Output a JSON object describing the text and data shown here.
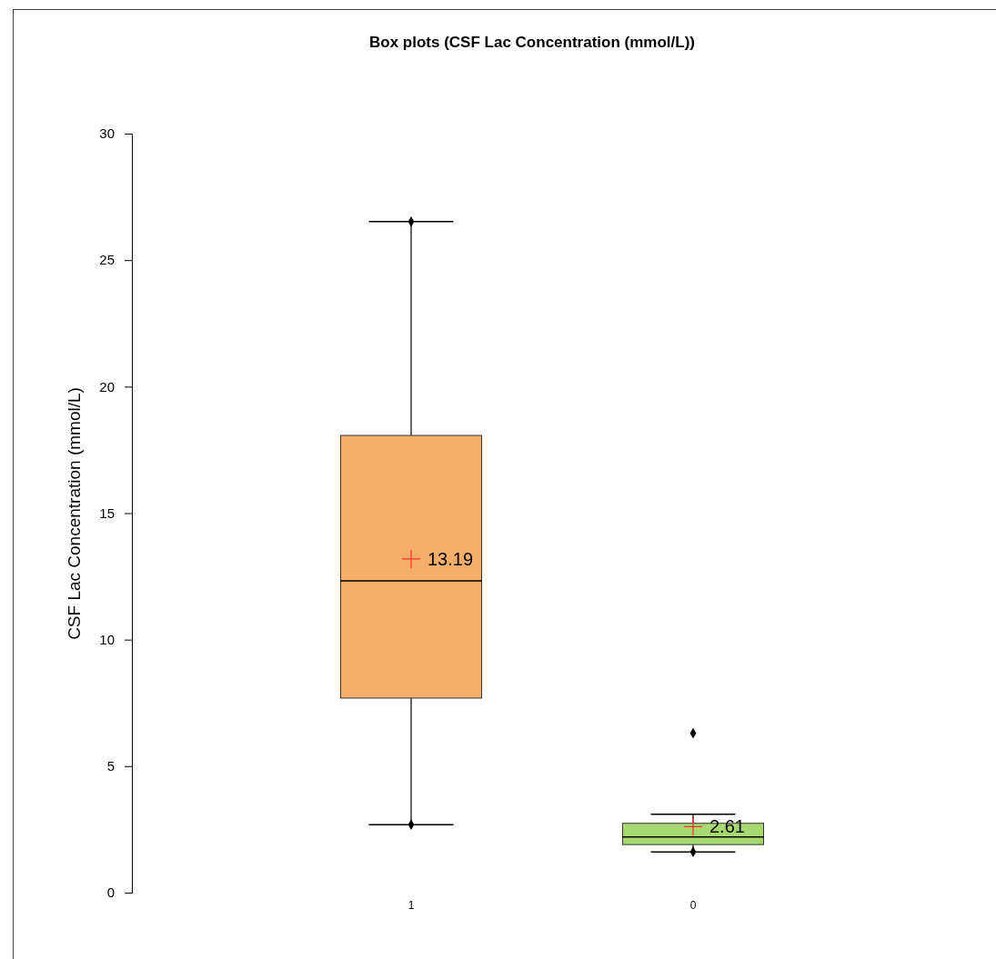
{
  "chart_data": {
    "type": "box",
    "title": "Box plots (CSF Lac Concentration (mmol/L))",
    "ylabel": "CSF Lac Concentration (mmol/L)",
    "categories": [
      "1",
      "0"
    ],
    "ylim": [
      0,
      30
    ],
    "yticks": [
      0,
      5,
      10,
      15,
      20,
      25,
      30
    ],
    "grid": false,
    "series": [
      {
        "colors": [
          "#f4ae6a",
          "#a8d870"
        ],
        "boxes": [
          {
            "low": 2.69,
            "q1": 7.69,
            "median": 12.32,
            "q3": 18.07,
            "high": 26.52,
            "mean": 13.19
          },
          {
            "low": 1.61,
            "q1": 1.9,
            "median": 2.2,
            "q3": 2.74,
            "high": 3.1,
            "mean": 2.61
          }
        ]
      },
      {
        "type": "scatter",
        "x": [
          "1",
          "1",
          "0",
          "0"
        ],
        "values": [
          26.52,
          2.69,
          6.3,
          1.61
        ],
        "color": "#000000",
        "marker": "diamond"
      }
    ],
    "annotations": [
      "13.19",
      "2.61"
    ]
  }
}
